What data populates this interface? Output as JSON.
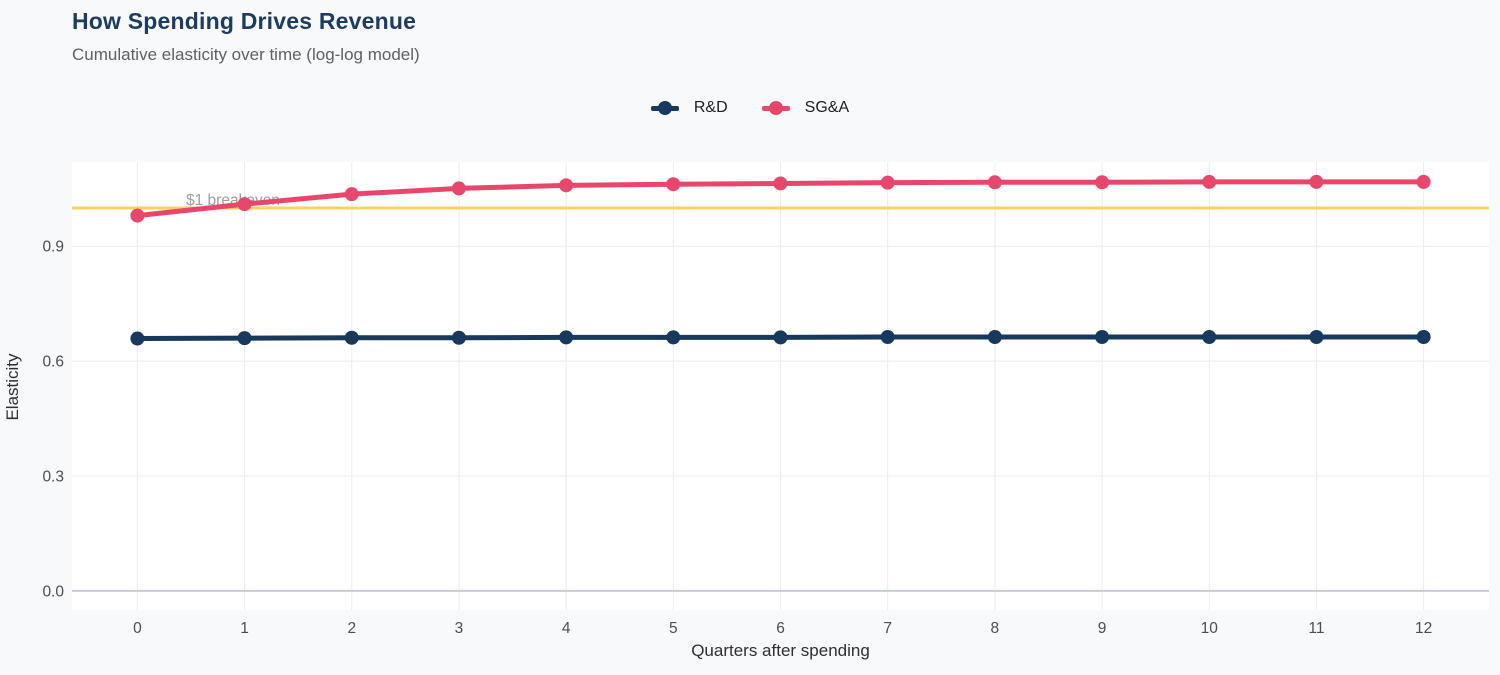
{
  "header": {
    "title": "How Spending Drives Revenue",
    "subtitle": "Cumulative elasticity over time (log-log model)"
  },
  "chart_data": {
    "type": "line",
    "x": [
      0,
      1,
      2,
      3,
      4,
      5,
      6,
      7,
      8,
      9,
      10,
      11,
      12
    ],
    "series": [
      {
        "name": "R&D",
        "color": "#17395e",
        "values": [
          0.659,
          0.66,
          0.661,
          0.661,
          0.662,
          0.662,
          0.662,
          0.663,
          0.663,
          0.663,
          0.663,
          0.663,
          0.663
        ]
      },
      {
        "name": "SG&A",
        "color": "#e8476b",
        "values": [
          0.98,
          1.01,
          1.036,
          1.051,
          1.059,
          1.062,
          1.064,
          1.066,
          1.067,
          1.067,
          1.068,
          1.068,
          1.068
        ]
      }
    ],
    "reference_line": {
      "value": 1.0,
      "label": "$1 breakeven",
      "color": "#fbd160"
    },
    "title": "How Spending Drives Revenue",
    "subtitle": "Cumulative elasticity over time (log-log model)",
    "xlabel": "Quarters after spending",
    "ylabel": "Elasticity",
    "x_ticks": [
      0,
      1,
      2,
      3,
      4,
      5,
      6,
      7,
      8,
      9,
      10,
      11,
      12
    ],
    "y_ticks": [
      0.0,
      0.3,
      0.6,
      0.9
    ],
    "xlim": [
      -0.61,
      12.61
    ],
    "ylim": [
      -0.05,
      1.12
    ],
    "grid": true,
    "legend_position": "top-center",
    "colors": {
      "grid": "#e9ebee",
      "zero_line": "#c8ccd2",
      "tick_label": "#4d4d4d",
      "annotation": "#9e9e9e",
      "panel_bg": "#ffffff"
    }
  }
}
